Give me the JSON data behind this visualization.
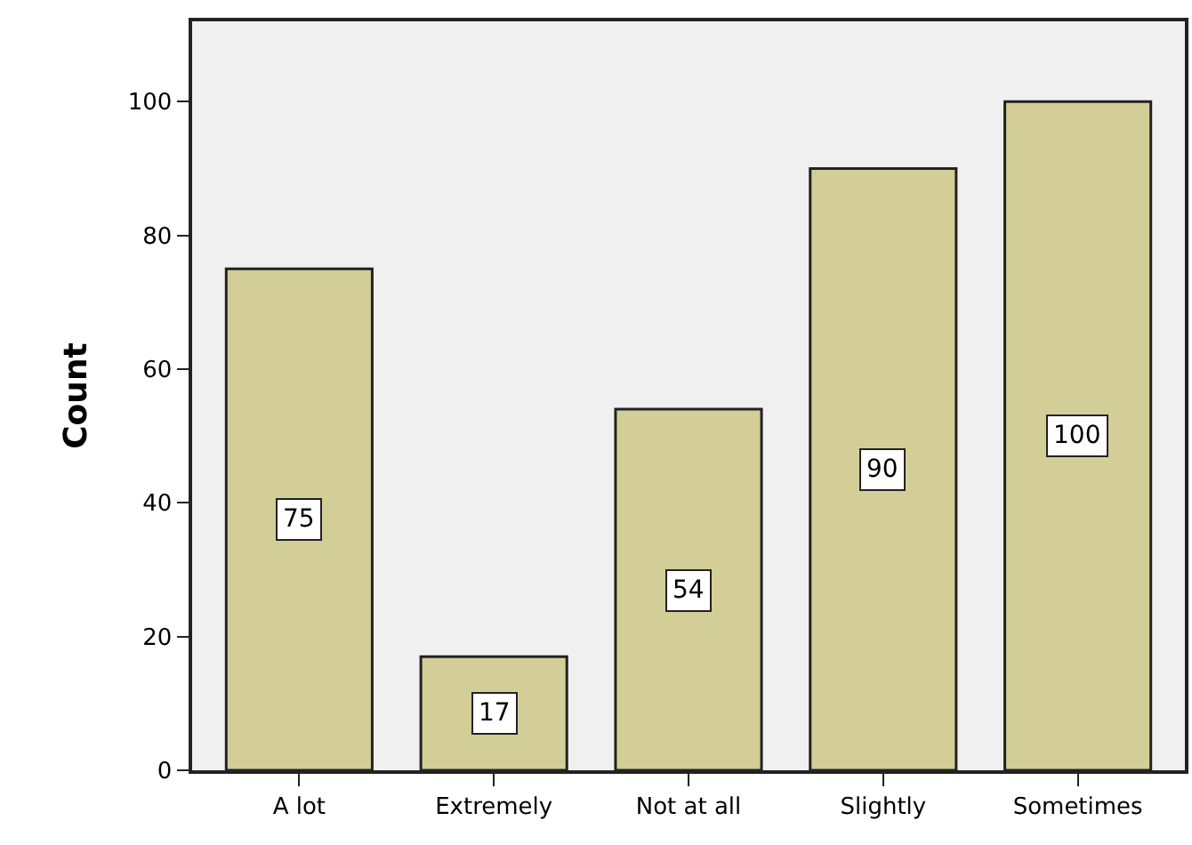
{
  "chart_data": {
    "type": "bar",
    "ylabel": "Count",
    "categories": [
      "A lot",
      "Extremely",
      "Not at all",
      "Slightly",
      "Sometimes"
    ],
    "values": [
      75,
      17,
      54,
      90,
      100
    ],
    "color": "#d3ce97",
    "ylim": [
      0,
      112
    ],
    "yticks": [
      0,
      20,
      40,
      60,
      80,
      100
    ],
    "data_labels": true,
    "grid": false
  }
}
